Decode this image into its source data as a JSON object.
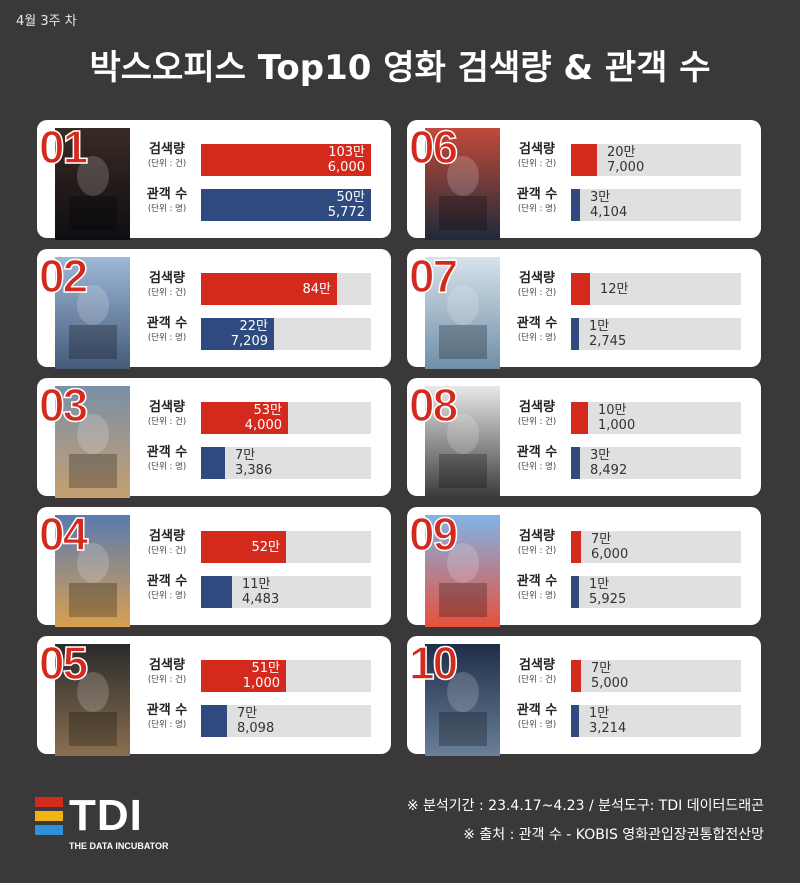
{
  "header": {
    "week": "4월 3주 차",
    "title": "박스오피스 Top10 영화 검색량 & 관객 수"
  },
  "labels": {
    "search_main": "검색량",
    "search_unit": "(단위 : 건)",
    "audience_main": "관객 수",
    "audience_unit": "(단위 : 명)"
  },
  "colors": {
    "search": "#d42a1e",
    "audience": "#2f4a7f",
    "rank": "#d42a1e",
    "background": "#3a3838"
  },
  "movies": [
    {
      "rank": "01",
      "search_l1": "103만",
      "search_l2": "6,000",
      "search_frac": 1.0,
      "aud_l1": "50만",
      "aud_l2": "5,772",
      "aud_frac": 1.0
    },
    {
      "rank": "02",
      "search_l1": "84만",
      "search_l2": "",
      "search_frac": 0.8,
      "aud_l1": "22만",
      "aud_l2": "7,209",
      "aud_frac": 0.43
    },
    {
      "rank": "03",
      "search_l1": "53만",
      "search_l2": "4,000",
      "search_frac": 0.51,
      "aud_l1": "7만",
      "aud_l2": "3,386",
      "aud_frac": 0.14
    },
    {
      "rank": "04",
      "search_l1": "52만",
      "search_l2": "",
      "search_frac": 0.5,
      "aud_l1": "11만",
      "aud_l2": "4,483",
      "aud_frac": 0.18
    },
    {
      "rank": "05",
      "search_l1": "51만",
      "search_l2": "1,000",
      "search_frac": 0.5,
      "aud_l1": "7만",
      "aud_l2": "8,098",
      "aud_frac": 0.15
    },
    {
      "rank": "06",
      "search_l1": "20만",
      "search_l2": "7,000",
      "search_frac": 0.15,
      "aud_l1": "3만",
      "aud_l2": "4,104",
      "aud_frac": 0.05
    },
    {
      "rank": "07",
      "search_l1": "12만",
      "search_l2": "",
      "search_frac": 0.11,
      "aud_l1": "1만",
      "aud_l2": "2,745",
      "aud_frac": 0.04
    },
    {
      "rank": "08",
      "search_l1": "10만",
      "search_l2": "1,000",
      "search_frac": 0.1,
      "aud_l1": "3만",
      "aud_l2": "8,492",
      "aud_frac": 0.05
    },
    {
      "rank": "09",
      "search_l1": "7만",
      "search_l2": "6,000",
      "search_frac": 0.06,
      "aud_l1": "1만",
      "aud_l2": "5,925",
      "aud_frac": 0.04
    },
    {
      "rank": "10",
      "search_l1": "7만",
      "search_l2": "5,000",
      "search_frac": 0.06,
      "aud_l1": "1만",
      "aud_l2": "3,214",
      "aud_frac": 0.04
    }
  ],
  "footer": {
    "logo_text": "TDI",
    "tagline": "THE DATA INCUBATOR",
    "logo_colors": [
      "#d42a1e",
      "#f2b316",
      "#2f8fd8"
    ],
    "source1": "※ 분석기간 : 23.4.17~4.23 / 분석도구: TDI 데이터드래곤",
    "source2": "※ 출처 : 관객 수 -  KOBIS 영화관입장권통합전산망"
  }
}
